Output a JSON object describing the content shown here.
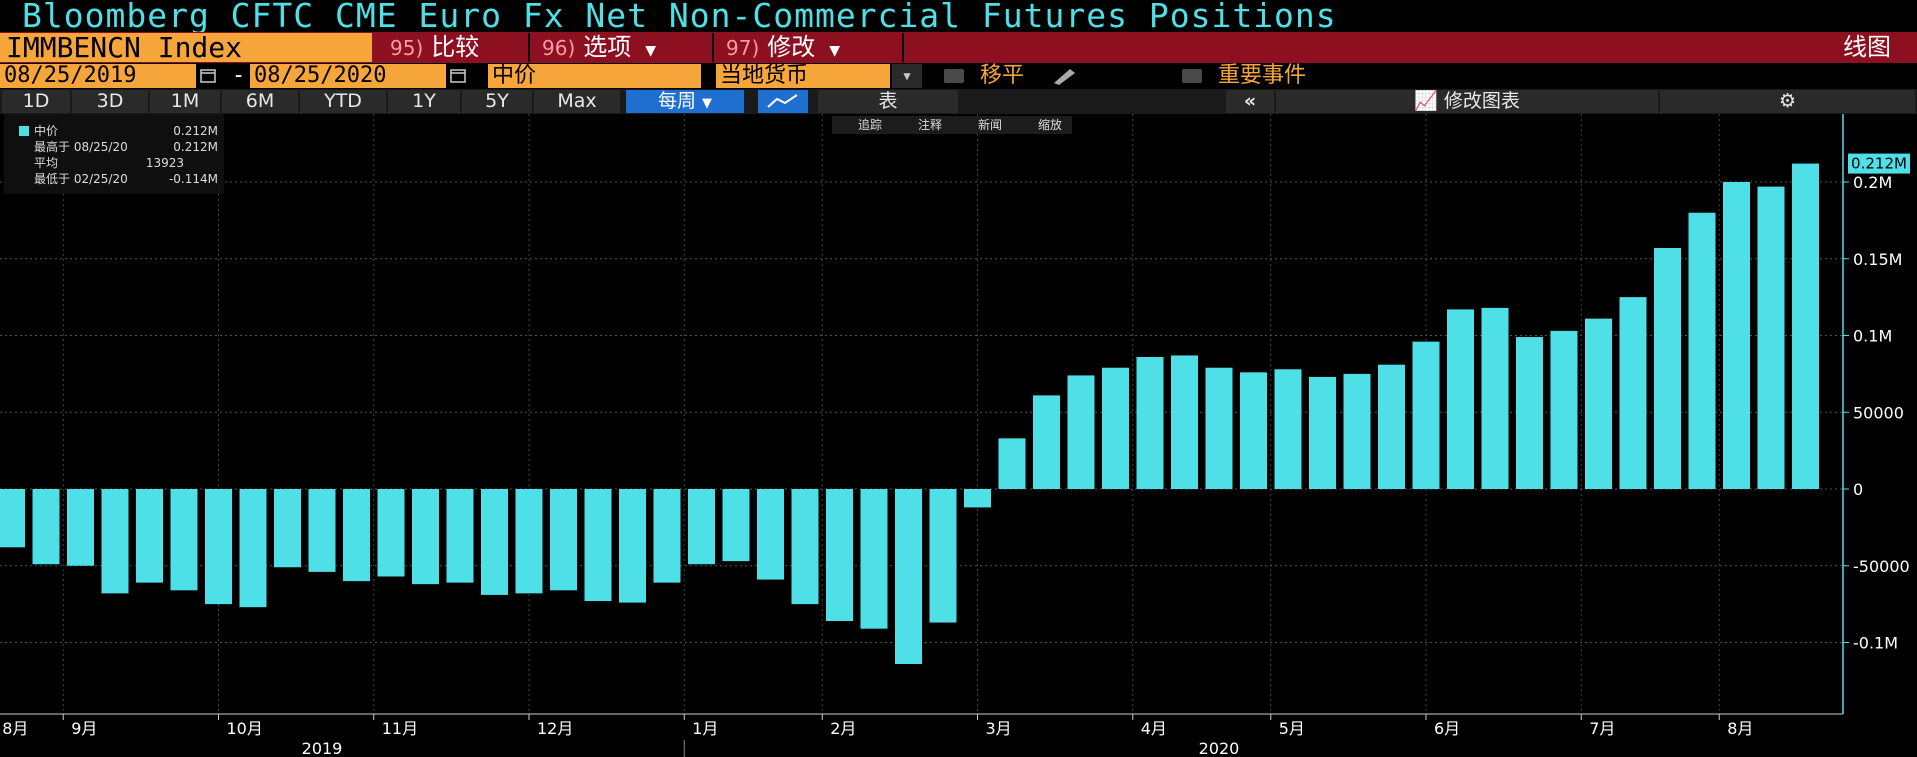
{
  "title": "Bloomberg CFTC CME Euro Fx Net Non-Commercial Futures Positions",
  "ticker": "IMMBENCN Index",
  "menu": [
    {
      "num": "95)",
      "label": "比较",
      "dropdown": false
    },
    {
      "num": "96)",
      "label": "选项",
      "dropdown": true
    },
    {
      "num": "97)",
      "label": "修改",
      "dropdown": true
    }
  ],
  "view_label": "线图",
  "date_start": "08/25/2019",
  "date_sep": "-",
  "date_end": "08/25/2020",
  "price_field": "中价",
  "currency_field": "当地货币",
  "shift_label": "移平",
  "events_label": "重要事件",
  "ranges": [
    "1D",
    "3D",
    "1M",
    "6M",
    "YTD",
    "1Y",
    "5Y",
    "Max"
  ],
  "frequency": "每周",
  "table_label": "表",
  "edit_chart_label": "修改图表",
  "tools": [
    "追踪",
    "注释",
    "新闻",
    "缩放"
  ],
  "legend": {
    "series_name": "中价",
    "last_value": "0.212M",
    "high_label": "最高于 08/25/20",
    "high_value": "0.212M",
    "avg_label": "平均",
    "avg_value": "13923",
    "low_label": "最低于 02/25/20",
    "low_value": "-0.114M"
  },
  "last_tag": "0.212M",
  "colors": {
    "bar": "#4ee0e6",
    "menu": "#8c1020",
    "accent": "#f6a53a"
  },
  "chart_data": {
    "type": "bar",
    "title": "Bloomberg CFTC CME Euro Fx Net Non-Commercial Futures Positions",
    "ylim": [
      -150000,
      230000
    ],
    "y_ticks": [
      {
        "v": 200000,
        "label": "0.2M"
      },
      {
        "v": 150000,
        "label": "0.15M"
      },
      {
        "v": 100000,
        "label": "0.1M"
      },
      {
        "v": 50000,
        "label": "50000"
      },
      {
        "v": 0,
        "label": "0"
      },
      {
        "v": -50000,
        "label": "-50000"
      },
      {
        "v": -100000,
        "label": "-0.1M"
      }
    ],
    "values": [
      -38000,
      -49000,
      -50000,
      -68000,
      -61000,
      -66000,
      -75000,
      -77000,
      -51000,
      -54000,
      -60000,
      -57000,
      -62000,
      -61000,
      -69000,
      -68000,
      -66000,
      -73000,
      -74000,
      -61000,
      -49000,
      -47000,
      -59000,
      -75000,
      -86000,
      -91000,
      -114000,
      -87000,
      -12000,
      33000,
      61000,
      74000,
      79000,
      86000,
      87000,
      79000,
      76000,
      78000,
      73000,
      75000,
      81000,
      96000,
      117000,
      118000,
      99000,
      103000,
      111000,
      125000,
      157000,
      180000,
      200000,
      197000,
      212000
    ],
    "month_labels": [
      "8月",
      "9月",
      "10月",
      "11月",
      "12月",
      "1月",
      "2月",
      "3月",
      "4月",
      "5月",
      "6月",
      "7月",
      "8月"
    ],
    "month_positions": [
      0,
      2,
      6.5,
      11,
      15.5,
      20,
      24,
      28.5,
      33,
      37,
      41.5,
      46,
      50
    ],
    "year_labels": [
      "2019",
      "2020"
    ],
    "year_positions": [
      9,
      35
    ]
  }
}
